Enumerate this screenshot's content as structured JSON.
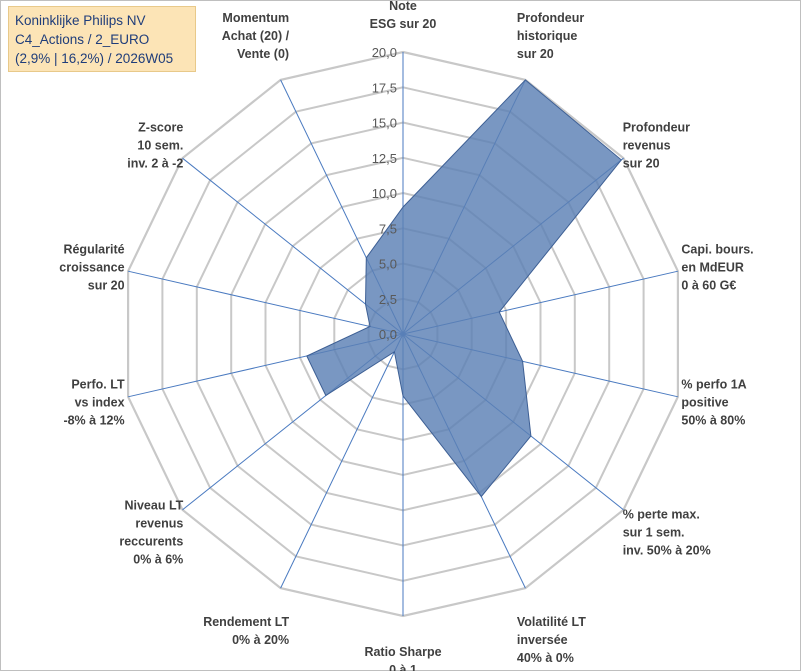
{
  "title_box": {
    "line1": "Koninklijke Philips NV",
    "line2": "C4_Actions / 2_EURO",
    "line3": "(2,9% | 16,2%) / 2026W05"
  },
  "colors": {
    "grid": "#c8c8c8",
    "spoke": "#4a7ac0",
    "fill": "#5b80b5",
    "stroke": "#3d5f94",
    "text": "#404040"
  },
  "chart_data": {
    "type": "radar",
    "title": "Koninklijke Philips NV",
    "range": [
      0,
      20
    ],
    "ticks": [
      "0,0",
      "2,5",
      "5,0",
      "7,5",
      "10,0",
      "12,5",
      "15,0",
      "17,5",
      "20,0"
    ],
    "axes": [
      [
        "Note",
        "ESG sur 20"
      ],
      [
        "Profondeur",
        "historique",
        "sur 20"
      ],
      [
        "Profondeur",
        "revenus",
        "sur 20"
      ],
      [
        "Capi. bours.",
        "en MdEUR",
        "0 à 60 G€"
      ],
      [
        "% perfo 1A",
        "positive",
        "50% à 80%"
      ],
      [
        "% perte max.",
        "sur 1 sem.",
        "inv. 50% à 20%"
      ],
      [
        "Volatilité LT",
        "inversée",
        "40% à 0%"
      ],
      [
        "Ratio Sharpe",
        "0 à 1"
      ],
      [
        "Rendement LT",
        "0% à 20%"
      ],
      [
        "Niveau LT",
        "revenus",
        "reccurents",
        "0% à 6%"
      ],
      [
        "Perfo. LT",
        "vs index",
        "-8% à 12%"
      ],
      [
        "Régularité",
        "croissance",
        "sur 20"
      ],
      [
        "Z-score",
        "10 sem.",
        "inv. 2 à -2"
      ],
      [
        "Momentum",
        "Achat (20) /",
        "Vente (0)"
      ]
    ],
    "series": [
      {
        "name": "Koninklijke Philips NV",
        "values": [
          9.0,
          20.0,
          19.8,
          7.0,
          8.7,
          11.6,
          12.8,
          4.4,
          1.4,
          7.0,
          7.0,
          2.4,
          3.4,
          6.0
        ]
      }
    ]
  }
}
